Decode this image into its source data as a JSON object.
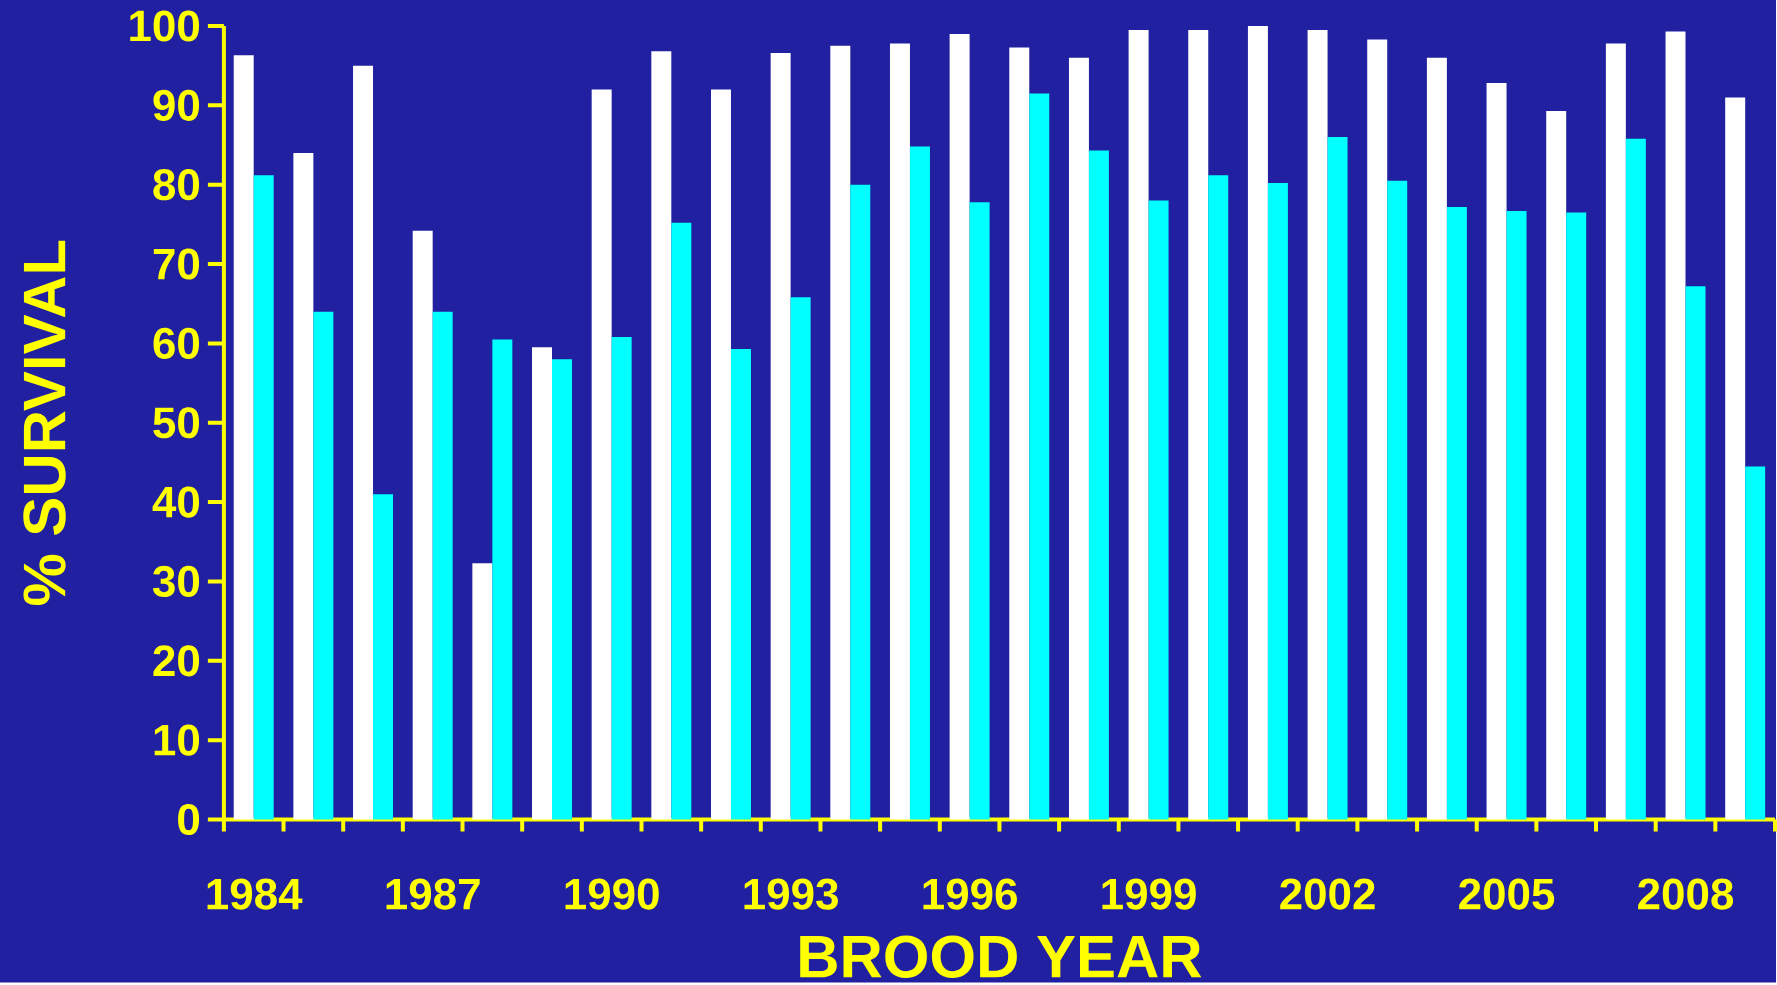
{
  "chart_data": {
    "type": "bar",
    "xlabel": "BROOD YEAR",
    "ylabel": "% SURVIVAL",
    "categories": [
      "1984",
      null,
      null,
      "1987",
      null,
      null,
      "1990",
      null,
      null,
      "1993",
      null,
      null,
      "1996",
      null,
      null,
      "1999",
      null,
      null,
      "2002",
      null,
      null,
      "2005",
      null,
      null,
      "2008",
      null
    ],
    "series": [
      {
        "color": "#ffffff",
        "values": [
          96.3,
          84,
          95,
          74.2,
          32.3,
          59.5,
          92,
          96.8,
          92,
          96.6,
          97.5,
          97.8,
          99,
          97.3,
          96,
          99.5,
          99.5,
          100,
          99.5,
          98.3,
          96,
          92.8,
          89.3,
          97.8,
          99.3,
          91
        ]
      },
      {
        "color": "#00ffff",
        "values": [
          81.2,
          64,
          41,
          64,
          60.5,
          58,
          60.8,
          75.2,
          59.3,
          65.8,
          80,
          84.8,
          77.8,
          91.5,
          84.3,
          78,
          81.2,
          80.2,
          86,
          80.5,
          77.2,
          76.7,
          76.5,
          85.8,
          67.2,
          44.5
        ]
      }
    ],
    "ylim": [
      0,
      100
    ],
    "yticks": [
      0,
      10,
      20,
      30,
      40,
      50,
      60,
      70,
      80,
      90,
      100
    ],
    "grid": false
  }
}
